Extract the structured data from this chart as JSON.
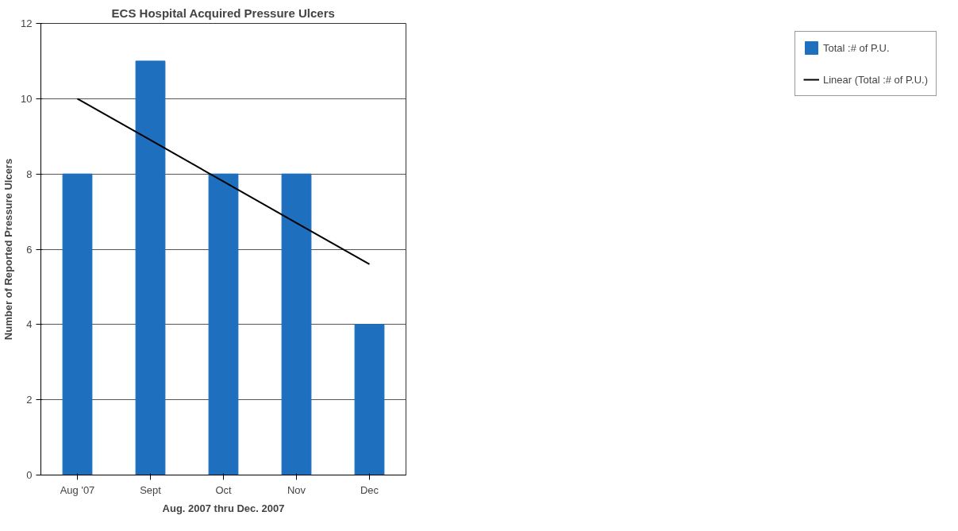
{
  "chart_data": {
    "type": "bar",
    "title": "ECS Hospital Acquired Pressure Ulcers",
    "xlabel": "Aug. 2007 thru Dec. 2007",
    "ylabel": "Number of Reported Pressure Ulcers",
    "categories": [
      "Aug '07",
      "Sept",
      "Oct",
      "Nov",
      "Dec"
    ],
    "series": [
      {
        "name": "Total :# of P.U.",
        "color": "#1f6fbf",
        "values": [
          8,
          11,
          8,
          8,
          4
        ]
      },
      {
        "name": "Linear (Total :# of P.U.)",
        "type": "line",
        "color": "#000000",
        "values": [
          10.0,
          8.9,
          7.8,
          6.7,
          5.6
        ]
      }
    ],
    "ylim": [
      0,
      12
    ],
    "yticks": [
      0,
      2,
      4,
      6,
      8,
      10,
      12
    ],
    "grid": "y",
    "legend": "right"
  }
}
